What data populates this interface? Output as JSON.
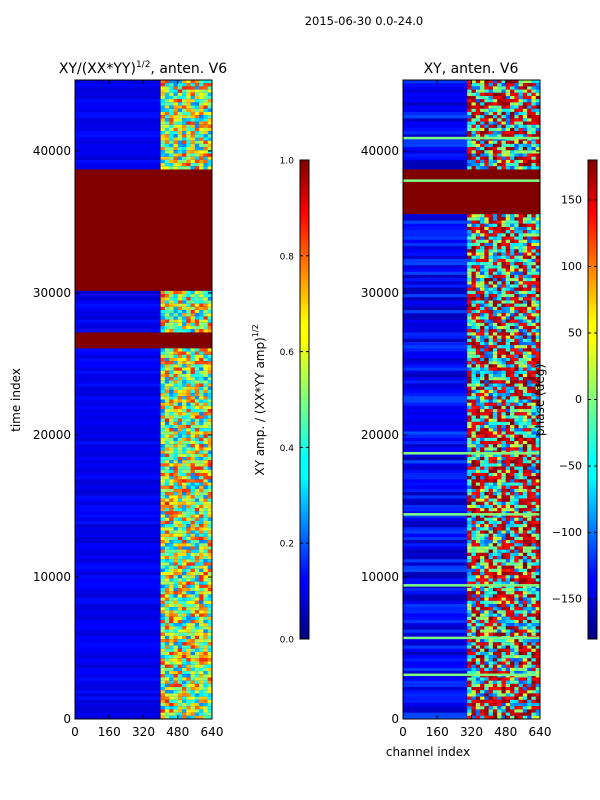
{
  "figure_title": "2015-06-30 0.0-24.0",
  "chart_data": [
    {
      "type": "heatmap",
      "title_main": "XY/(XX*YY)",
      "title_sup": "1/2",
      "title_rest": ", anten. V6",
      "xlabel": "",
      "ylabel": "time index",
      "xlim": [
        0,
        640
      ],
      "ylim": [
        0,
        45000
      ],
      "x_ticks": [
        0,
        160,
        320,
        480,
        640
      ],
      "y_ticks": [
        0,
        10000,
        20000,
        30000,
        40000
      ],
      "saturated_bands": [
        [
          26000,
          27200
        ],
        [
          30200,
          38600
        ]
      ],
      "active_channels": [
        400,
        640
      ],
      "colorbar": {
        "label_main": "XY amp. / (XX*YY amp)",
        "label_sup": "1/2",
        "range": [
          0.0,
          1.0
        ],
        "ticks": [
          "0.0",
          "0.2",
          "0.4",
          "0.6",
          "0.8",
          "1.0"
        ]
      }
    },
    {
      "type": "heatmap",
      "title_main": "XY, anten. V6",
      "xlabel": "channel index",
      "ylabel": "",
      "xlim": [
        0,
        640
      ],
      "ylim": [
        0,
        45000
      ],
      "x_ticks": [
        0,
        160,
        320,
        480,
        640
      ],
      "y_ticks": [
        0,
        10000,
        20000,
        30000,
        40000
      ],
      "saturated_bands": [
        [
          35500,
          38700
        ]
      ],
      "active_channels": [
        300,
        640
      ],
      "colorbar": {
        "label_main": "phase (deg)",
        "range": [
          -180,
          180
        ],
        "ticks": [
          "−150",
          "−100",
          "−50",
          "0",
          "50",
          "100",
          "150"
        ]
      }
    }
  ],
  "colors": {
    "jet_dark_blue": "#00007f",
    "jet_blue": "#0000ff",
    "jet_cyan": "#00ffff",
    "jet_yellow": "#ffff00",
    "jet_red": "#ff0000",
    "jet_dark_red": "#800000"
  }
}
